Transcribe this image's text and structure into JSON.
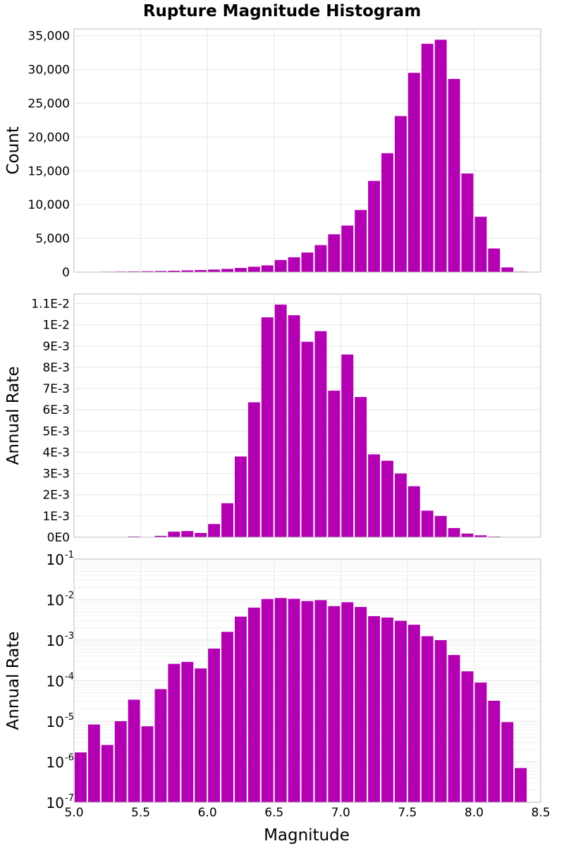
{
  "chart_data": {
    "type": "bar",
    "title": "Rupture Magnitude Histogram",
    "xlabel": "Magnitude",
    "xlim": [
      5.0,
      8.5
    ],
    "bin_width": 0.1,
    "bin_centers": [
      5.05,
      5.15,
      5.25,
      5.35,
      5.45,
      5.55,
      5.65,
      5.75,
      5.85,
      5.95,
      6.05,
      6.15,
      6.25,
      6.35,
      6.45,
      6.55,
      6.65,
      6.75,
      6.85,
      6.95,
      7.05,
      7.15,
      7.25,
      7.35,
      7.45,
      7.55,
      7.65,
      7.75,
      7.85,
      7.95,
      8.05,
      8.15,
      8.25,
      8.35
    ],
    "x_ticks": [
      "5.0",
      "5.5",
      "6.0",
      "6.5",
      "7.0",
      "7.5",
      "8.0",
      "8.5"
    ],
    "bar_color": "#b300b3",
    "panels": [
      {
        "ylabel": "Count",
        "scale": "linear",
        "ylim": [
          0,
          36000
        ],
        "y_ticks": [
          0,
          5000,
          10000,
          15000,
          20000,
          25000,
          30000,
          35000
        ],
        "y_tick_labels": [
          "0",
          "5,000",
          "10,000",
          "15,000",
          "20,000",
          "25,000",
          "30,000",
          "35,000"
        ],
        "values": [
          30,
          50,
          70,
          90,
          110,
          140,
          170,
          210,
          260,
          310,
          380,
          480,
          620,
          800,
          1000,
          1800,
          2200,
          2900,
          4000,
          5600,
          6900,
          9200,
          13500,
          17600,
          23100,
          29500,
          33800,
          34400,
          28600,
          14600,
          8200,
          3500,
          700,
          80
        ]
      },
      {
        "ylabel": "Annual Rate",
        "scale": "linear",
        "ylim": [
          0,
          0.01145
        ],
        "y_ticks": [
          0,
          0.001,
          0.002,
          0.003,
          0.004,
          0.005,
          0.006,
          0.007,
          0.008,
          0.009,
          0.01,
          0.011
        ],
        "y_tick_labels": [
          "0E0",
          "1E-3",
          "2E-3",
          "3E-3",
          "4E-3",
          "5E-3",
          "6E-3",
          "7E-3",
          "8E-3",
          "9E-3",
          "1E-2",
          "1.1E-2"
        ],
        "values": [
          1.7e-06,
          8.3e-06,
          2.6e-06,
          1e-05,
          3.4e-05,
          7.5e-06,
          6.2e-05,
          0.00026,
          0.00029,
          0.0002,
          0.00062,
          0.0016,
          0.0038,
          0.00635,
          0.01035,
          0.01095,
          0.01045,
          0.0092,
          0.0097,
          0.0069,
          0.0086,
          0.0066,
          0.0039,
          0.0036,
          0.003,
          0.0024,
          0.00125,
          0.001,
          0.00043,
          0.00017,
          9e-05,
          3.2e-05,
          9.5e-06,
          7e-07
        ]
      },
      {
        "ylabel": "Annual Rate",
        "scale": "log",
        "ylim_exp": [
          -7,
          -1
        ],
        "y_tick_exps": [
          -7,
          -6,
          -5,
          -4,
          -3,
          -2,
          -1
        ],
        "y_tick_base": "10",
        "y_tick_exp_labels": [
          "-7",
          "-6",
          "-5",
          "-4",
          "-3",
          "-2",
          "-1"
        ],
        "values": [
          1.7e-06,
          8.3e-06,
          2.6e-06,
          1e-05,
          3.4e-05,
          7.5e-06,
          6.2e-05,
          0.00026,
          0.00029,
          0.0002,
          0.00062,
          0.0016,
          0.0038,
          0.00635,
          0.01035,
          0.01095,
          0.01045,
          0.0092,
          0.0097,
          0.0069,
          0.0086,
          0.0066,
          0.0039,
          0.0036,
          0.003,
          0.0024,
          0.00125,
          0.001,
          0.00043,
          0.00017,
          9e-05,
          3.2e-05,
          9.5e-06,
          7e-07
        ]
      }
    ]
  }
}
